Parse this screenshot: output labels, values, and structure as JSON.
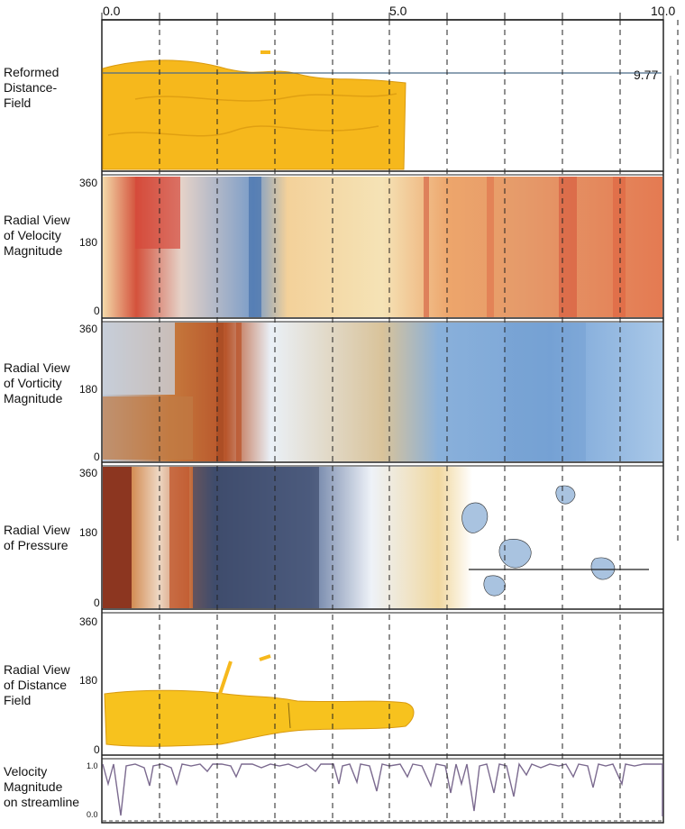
{
  "axis": {
    "start": "0.0",
    "mid": "5.0",
    "end": "10.0",
    "marker_value": "9.77"
  },
  "rows": [
    {
      "label_lines": [
        "Reformed",
        "Distance-",
        "Field"
      ]
    },
    {
      "label_lines": [
        "Radial View",
        "of Velocity",
        "Magnitude"
      ],
      "y_ticks": [
        "360",
        "180",
        "0"
      ]
    },
    {
      "label_lines": [
        "Radial View",
        "of Vorticity",
        "Magnitude"
      ],
      "y_ticks": [
        "360",
        "180",
        "0"
      ]
    },
    {
      "label_lines": [
        "Radial View",
        "of Pressure"
      ],
      "y_ticks": [
        "360",
        "180",
        "0"
      ]
    },
    {
      "label_lines": [
        "Radial View",
        "of Distance",
        "Field"
      ],
      "y_ticks": [
        "360",
        "180",
        "0"
      ]
    },
    {
      "label_lines": [
        "Velocity",
        "Magnitude",
        "on streamline"
      ],
      "y_ticks": [
        "1.0",
        "0.0"
      ]
    }
  ],
  "colors": {
    "distance_field": "#f6b81c",
    "warm": "#c8472c",
    "cool": "#4f7fb8",
    "dark_blue": "#3d4a6b",
    "streamline": "#7b6a8f"
  }
}
